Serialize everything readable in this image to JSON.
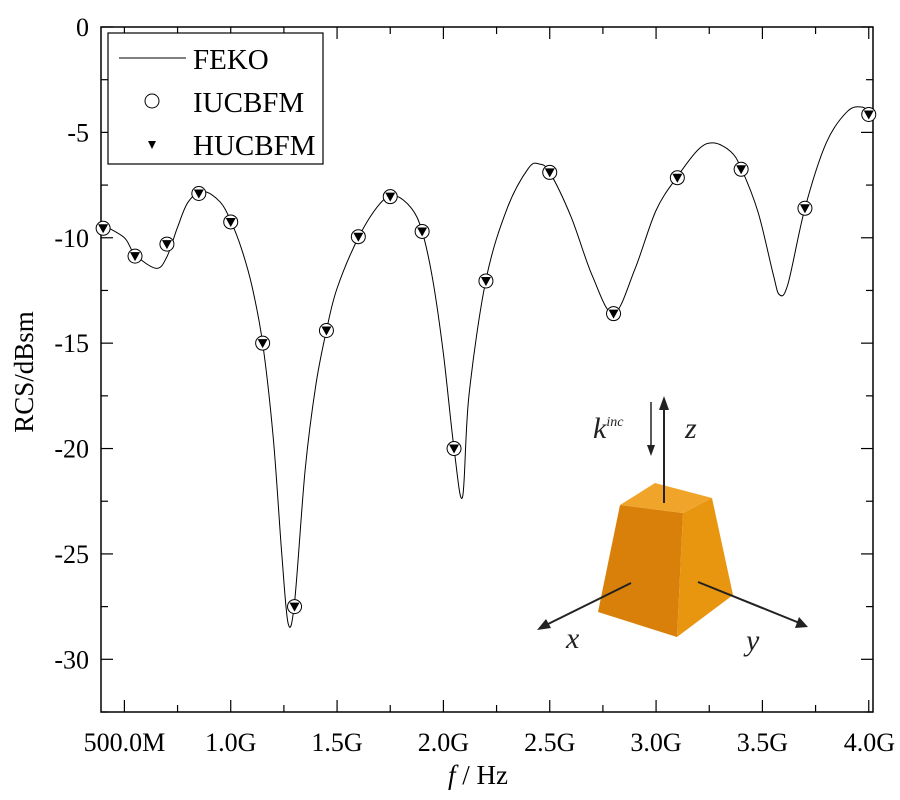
{
  "chart_data": {
    "type": "line",
    "title": "",
    "xlabel_italic": "f",
    "xlabel_unit": " / Hz",
    "ylabel": "RCS/dBsm",
    "xlim": [
      0.39,
      4.02
    ],
    "ylim": [
      -32.5,
      0
    ],
    "grid": false,
    "legend_position": "top-left",
    "x_ticks": [
      0.5,
      1.0,
      1.5,
      2.0,
      2.5,
      3.0,
      3.5,
      4.0
    ],
    "x_tick_labels": [
      "500.0M",
      "1.0G",
      "1.5G",
      "2.0G",
      "2.5G",
      "3.0G",
      "3.5G",
      "4.0G"
    ],
    "y_ticks": [
      0,
      -5,
      -10,
      -15,
      -20,
      -25,
      -30
    ],
    "y_tick_labels": [
      "0",
      "-5",
      "-10",
      "-15",
      "-20",
      "-25",
      "-30"
    ],
    "x_unit": "GHz",
    "series": [
      {
        "name": "FEKO",
        "style": "line",
        "x": [
          0.4,
          0.5,
          0.55,
          0.65,
          0.7,
          0.75,
          0.8,
          0.87,
          0.95,
          1.0,
          1.05,
          1.1,
          1.15,
          1.2,
          1.24,
          1.27,
          1.3,
          1.35,
          1.4,
          1.45,
          1.5,
          1.6,
          1.7,
          1.77,
          1.85,
          1.9,
          1.95,
          2.0,
          2.05,
          2.09,
          2.12,
          2.2,
          2.3,
          2.4,
          2.45,
          2.5,
          2.6,
          2.7,
          2.8,
          2.9,
          3.0,
          3.1,
          3.2,
          3.27,
          3.35,
          3.4,
          3.48,
          3.55,
          3.58,
          3.62,
          3.7,
          3.8,
          3.9,
          3.97,
          4.0
        ],
        "y": [
          -9.4,
          -10.0,
          -10.8,
          -11.45,
          -10.9,
          -9.5,
          -8.3,
          -7.8,
          -8.3,
          -9.2,
          -10.5,
          -12.3,
          -15.0,
          -19.5,
          -25.0,
          -28.3,
          -27.3,
          -21.0,
          -17.0,
          -14.4,
          -12.4,
          -10.0,
          -8.4,
          -8.0,
          -8.6,
          -9.7,
          -12.0,
          -15.5,
          -20.0,
          -22.3,
          -17.5,
          -12.0,
          -8.6,
          -6.7,
          -6.5,
          -6.9,
          -9.0,
          -11.8,
          -13.6,
          -11.5,
          -8.7,
          -7.1,
          -5.8,
          -5.5,
          -5.9,
          -6.7,
          -8.8,
          -11.7,
          -12.7,
          -12.2,
          -8.6,
          -5.5,
          -4.0,
          -3.8,
          -4.1
        ]
      },
      {
        "name": "IUCBFM",
        "style": "open-circle",
        "x": [
          0.4,
          0.55,
          0.7,
          0.85,
          1.0,
          1.15,
          1.3,
          1.45,
          1.6,
          1.75,
          1.9,
          2.05,
          2.2,
          2.5,
          2.8,
          3.1,
          3.4,
          3.7,
          4.0
        ],
        "y": [
          -9.55,
          -10.87,
          -10.3,
          -7.9,
          -9.25,
          -15.0,
          -27.5,
          -14.4,
          -9.95,
          -8.05,
          -9.7,
          -20.0,
          -12.05,
          -6.9,
          -13.6,
          -7.15,
          -6.75,
          -8.6,
          -4.15
        ]
      },
      {
        "name": "HUCBFM",
        "style": "filled-down-triangle",
        "x": [
          0.4,
          0.55,
          0.7,
          0.85,
          1.0,
          1.15,
          1.3,
          1.45,
          1.6,
          1.75,
          1.9,
          2.05,
          2.2,
          2.5,
          2.8,
          3.1,
          3.4,
          3.7,
          4.0
        ],
        "y": [
          -9.55,
          -10.87,
          -10.3,
          -7.9,
          -9.25,
          -15.0,
          -27.5,
          -14.4,
          -9.95,
          -8.05,
          -9.7,
          -20.0,
          -12.05,
          -6.9,
          -13.6,
          -7.15,
          -6.75,
          -8.6,
          -4.15
        ]
      }
    ],
    "inset": {
      "k_label": "k",
      "k_superscript": "inc",
      "x_axis_label": "x",
      "y_axis_label": "y",
      "z_axis_label": "z",
      "body_color": "#e08a0c"
    }
  }
}
